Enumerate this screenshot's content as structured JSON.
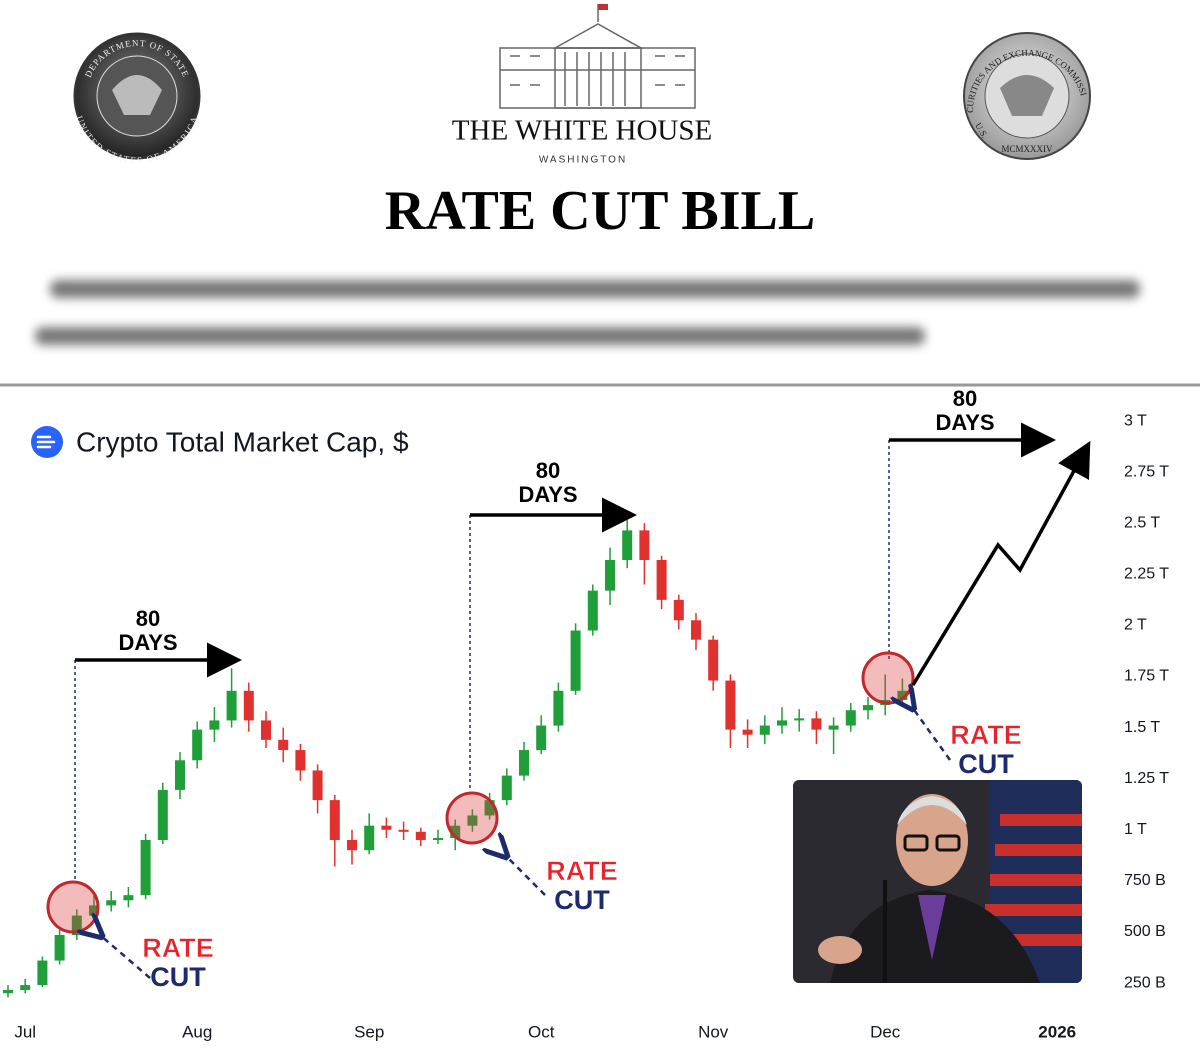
{
  "header": {
    "seal_left_top": "DEPARTMENT OF STATE",
    "seal_left_bottom": "UNITED STATES OF AMERICA",
    "white_house": "THE WHITE HOUSE",
    "washington": "WASHINGTON",
    "seal_right_top": "SECURITIES AND EXCHANGE COMMISSION",
    "seal_right_left": "U.S.",
    "seal_right_year": "MCMXXXIV",
    "bill_title": "RATE CUT BILL"
  },
  "chart_data": {
    "type": "candlestick",
    "title": "Crypto Total Market Cap, $",
    "categories": [
      null,
      "Jul",
      null,
      null,
      null,
      null,
      null,
      null,
      null,
      null,
      null,
      "Aug",
      null,
      null,
      null,
      null,
      null,
      null,
      null,
      null,
      null,
      "Sep",
      null,
      null,
      null,
      null,
      null,
      null,
      null,
      null,
      null,
      "Oct",
      null,
      null,
      null,
      null,
      null,
      null,
      null,
      null,
      null,
      "Nov",
      null,
      null,
      null,
      null,
      null,
      null,
      null,
      null,
      null,
      "Dec",
      null,
      null,
      null,
      null,
      null,
      null,
      null,
      null,
      null,
      "2026"
    ],
    "open": [
      200,
      216,
      240,
      360,
      485,
      580,
      630,
      655,
      680,
      950,
      1195,
      1340,
      1490,
      1535,
      1680,
      1535,
      1440,
      1390,
      1290,
      1145,
      950,
      900,
      1020,
      1000,
      990,
      950,
      960,
      1020,
      1070,
      1145,
      1265,
      1390,
      1510,
      1680,
      1975,
      2170,
      2320,
      2465,
      2320,
      2125,
      2025,
      1930,
      1730,
      1490,
      1465,
      1510,
      1535,
      1545,
      1490,
      1510,
      1585,
      1610,
      1635,
      null,
      null,
      null,
      null,
      null,
      null,
      null,
      null,
      null
    ],
    "high": [
      240,
      270,
      380,
      510,
      610,
      680,
      700,
      720,
      980,
      1230,
      1380,
      1530,
      1600,
      1790,
      1720,
      1580,
      1500,
      1420,
      1320,
      1170,
      1000,
      1080,
      1060,
      1040,
      1010,
      1000,
      1050,
      1100,
      1180,
      1300,
      1430,
      1560,
      1720,
      2010,
      2200,
      2380,
      2520,
      2500,
      2340,
      2150,
      2060,
      1950,
      1760,
      1540,
      1560,
      1600,
      1590,
      1580,
      1550,
      1620,
      1650,
      1760,
      1740,
      null,
      null,
      null,
      null,
      null,
      null,
      null,
      null,
      null
    ],
    "low": [
      180,
      200,
      230,
      340,
      460,
      560,
      600,
      620,
      660,
      930,
      1150,
      1300,
      1430,
      1500,
      1480,
      1400,
      1330,
      1240,
      1080,
      820,
      830,
      880,
      960,
      950,
      920,
      930,
      900,
      990,
      1050,
      1120,
      1240,
      1370,
      1480,
      1660,
      1950,
      2100,
      2280,
      2200,
      2080,
      1980,
      1880,
      1680,
      1400,
      1400,
      1420,
      1470,
      1480,
      1420,
      1370,
      1480,
      1540,
      1560,
      1600,
      null,
      null,
      null,
      null,
      null,
      null,
      null,
      null,
      null
    ],
    "close": [
      216,
      240,
      360,
      485,
      580,
      630,
      655,
      680,
      950,
      1195,
      1340,
      1490,
      1535,
      1680,
      1535,
      1440,
      1390,
      1290,
      1145,
      950,
      900,
      1020,
      1000,
      990,
      950,
      960,
      1020,
      1070,
      1145,
      1265,
      1390,
      1510,
      1680,
      1975,
      2170,
      2320,
      2465,
      2320,
      2125,
      2025,
      1930,
      1730,
      1490,
      1465,
      1510,
      1535,
      1545,
      1490,
      1510,
      1585,
      1610,
      1635,
      1680,
      null,
      null,
      null,
      null,
      null,
      null,
      null,
      null,
      null
    ],
    "up_color": "#1f9e3a",
    "down_color": "#e0312e",
    "ylim": [
      120,
      3100
    ],
    "yticks": [
      {
        "value": 250,
        "label": "250 B"
      },
      {
        "value": 500,
        "label": "500 B"
      },
      {
        "value": 750,
        "label": "750 B"
      },
      {
        "value": 1000,
        "label": "1 T"
      },
      {
        "value": 1250,
        "label": "1.25 T"
      },
      {
        "value": 1500,
        "label": "1.5 T"
      },
      {
        "value": 1750,
        "label": "1.75 T"
      },
      {
        "value": 2000,
        "label": "2 T"
      },
      {
        "value": 2250,
        "label": "2.25 T"
      },
      {
        "value": 2500,
        "label": "2.5 T"
      },
      {
        "value": 2750,
        "label": "2.75 T"
      },
      {
        "value": 3000,
        "label": "3 T"
      }
    ],
    "annotations": {
      "days_labels": [
        {
          "number": "80",
          "unit": "DAYS"
        },
        {
          "number": "80",
          "unit": "DAYS"
        },
        {
          "number": "80",
          "unit": "DAYS"
        }
      ],
      "rate_cut_labels": [
        {
          "line1": "RATE",
          "line2": "CUT"
        },
        {
          "line1": "RATE",
          "line2": "CUT"
        },
        {
          "line1": "RATE",
          "line2": "CUT"
        }
      ]
    }
  }
}
